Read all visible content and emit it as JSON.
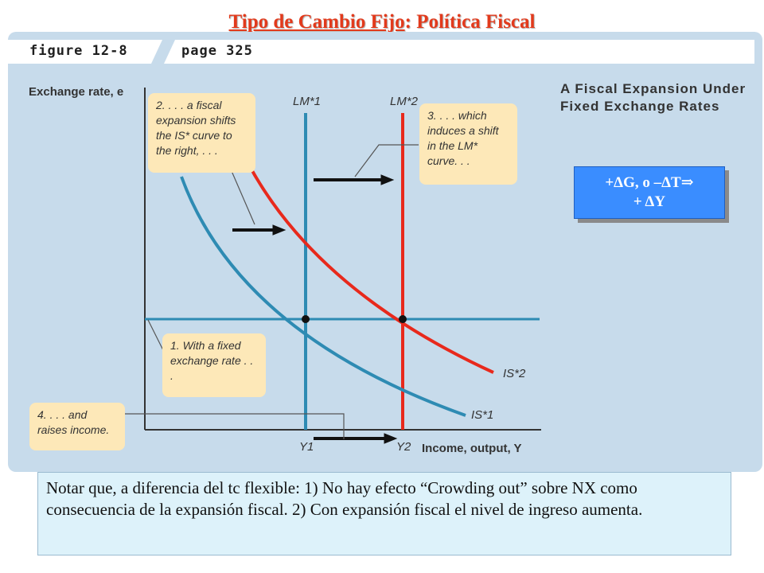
{
  "title": {
    "underlined": "Tipo de Cambio Fijo",
    "rest": ": Política Fiscal"
  },
  "figure": {
    "label": "figure 12-8",
    "page": "page 325",
    "title": "A Fiscal Expansion Under Fixed Exchange Rates"
  },
  "axes": {
    "y_label": "Exchange rate, e",
    "x_label": "Income, output, Y",
    "y1_label": "Y1",
    "y2_label": "Y2"
  },
  "curves": {
    "lm1": "LM*1",
    "lm2": "LM*2",
    "is1": "IS*1",
    "is2": "IS*2",
    "lm1_color": "#2e8bb3",
    "lm2_color": "#e8291c",
    "is1_color": "#2e8bb3",
    "is2_color": "#e8291c"
  },
  "callouts": {
    "c1": "1. With a fixed exchange rate . . .",
    "c2": "2. . . . a fiscal expansion shifts the IS* curve to the right, . . .",
    "c3": "3. . . . which induces a shift in the LM* curve. . .",
    "c4": "4. . . . and raises income."
  },
  "summary_box": {
    "line1": "+ΔG, o –ΔT⇒",
    "line2": "+ ΔY"
  },
  "note": "Notar que, a diferencia del tc flexible: 1) No hay efecto “Crowding out” sobre NX  como consecuencia de la expansión fiscal. 2) Con expansión fiscal el nivel de ingreso aumenta."
}
